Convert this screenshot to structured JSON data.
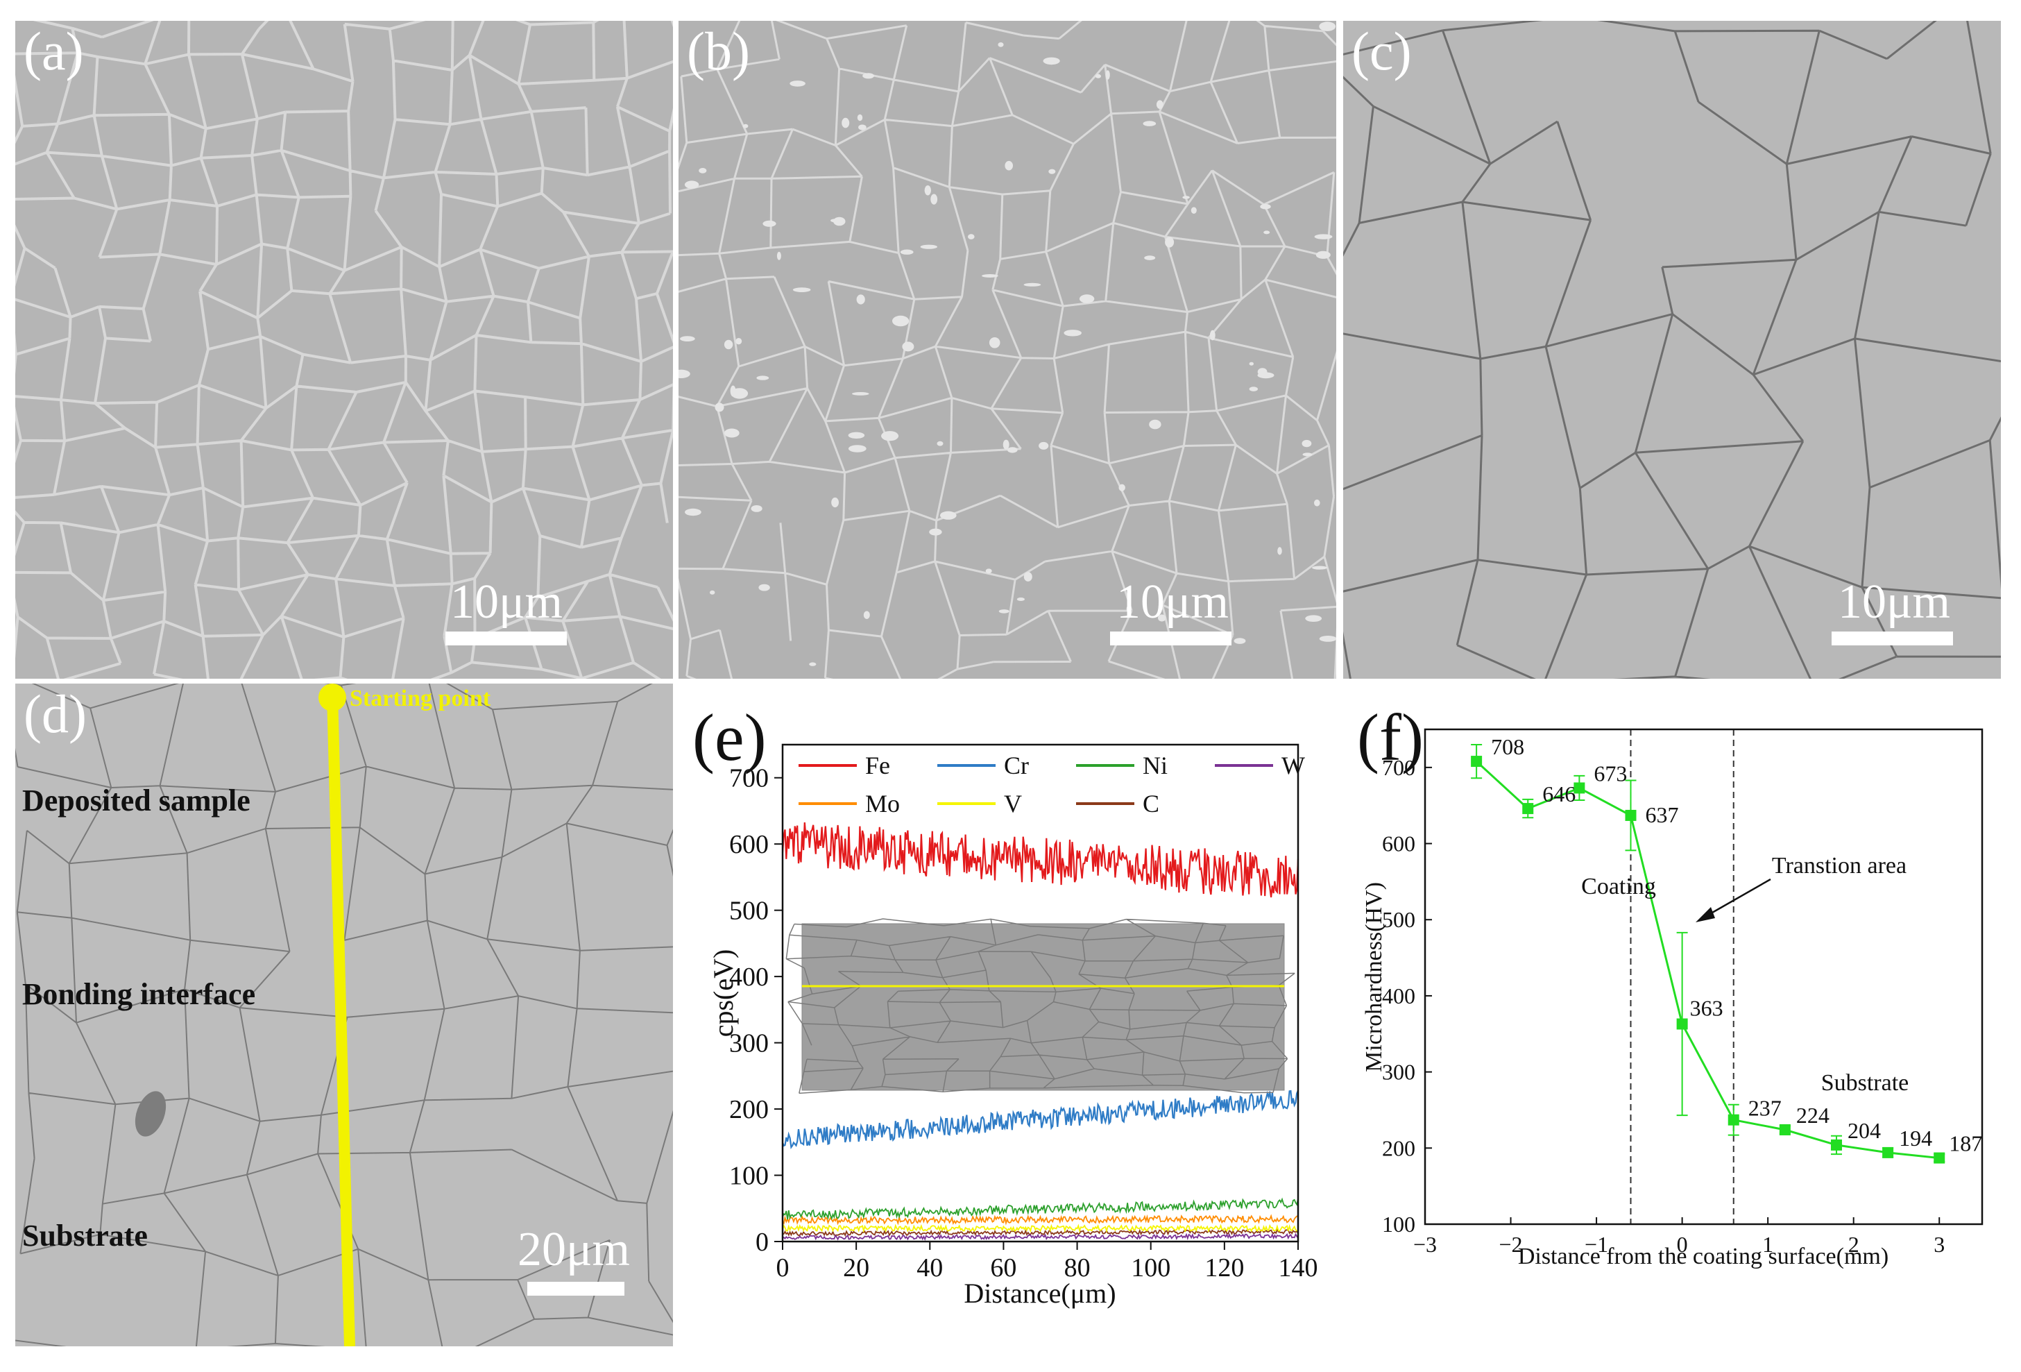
{
  "panels": {
    "a": {
      "label": "(a)",
      "scale": "10μm"
    },
    "b": {
      "label": "(b)",
      "scale": "10μm"
    },
    "c": {
      "label": "(c)",
      "scale": "10μm"
    },
    "d": {
      "label": "(d)",
      "scale": "20μm",
      "start_label": "Starting point",
      "regions": [
        "Deposited sample",
        "Bonding interface",
        "Substrate"
      ]
    },
    "e": {
      "label": "(e)"
    },
    "f": {
      "label": "(f)"
    }
  },
  "colors": {
    "sem_bg": "#b4b4b4",
    "yellow": "#f2f200",
    "Fe": "#e31a1c",
    "Cr": "#2f7cc6",
    "Ni": "#2ca02c",
    "W": "#7b3294",
    "Mo": "#ff8c00",
    "V": "#f5f500",
    "C": "#8b3a1a",
    "hardness": "#22dd22"
  },
  "chart_data": [
    {
      "type": "line",
      "panel": "e",
      "xlabel": "Distance(μm)",
      "ylabel": "cps(eV)",
      "xlim": [
        0,
        140
      ],
      "ylim": [
        0,
        750
      ],
      "xticks": [
        0,
        20,
        40,
        60,
        80,
        100,
        120,
        140
      ],
      "yticks": [
        0,
        100,
        200,
        300,
        400,
        500,
        600,
        700
      ],
      "legend": "top",
      "series": [
        {
          "name": "Fe",
          "start": 600,
          "end": 550,
          "noise": 35
        },
        {
          "name": "Cr",
          "start": 155,
          "end": 215,
          "noise": 15
        },
        {
          "name": "Ni",
          "start": 40,
          "end": 58,
          "noise": 7
        },
        {
          "name": "W",
          "start": 6,
          "end": 8,
          "noise": 3
        },
        {
          "name": "Mo",
          "start": 32,
          "end": 34,
          "noise": 5
        },
        {
          "name": "V",
          "start": 20,
          "end": 20,
          "noise": 4
        },
        {
          "name": "C",
          "start": 12,
          "end": 15,
          "noise": 3
        }
      ]
    },
    {
      "type": "line",
      "panel": "f",
      "xlabel": "Distance from the coating surface(mm)",
      "ylabel": "Microhardness(HV)",
      "xlim": [
        -3,
        3.5
      ],
      "ylim": [
        100,
        750
      ],
      "xticks": [
        -3,
        -2,
        -1,
        0,
        1,
        2,
        3
      ],
      "yticks": [
        100,
        200,
        300,
        400,
        500,
        600,
        700
      ],
      "x": [
        -2.4,
        -1.8,
        -1.2,
        -0.6,
        0,
        0.6,
        1.2,
        1.8,
        2.4,
        3.0
      ],
      "y": [
        708,
        646,
        673,
        637,
        363,
        237,
        224,
        204,
        194,
        187
      ],
      "err": [
        22,
        12,
        16,
        46,
        120,
        20,
        5,
        12,
        6,
        5
      ],
      "point_labels": [
        "708",
        "646",
        "673",
        "637",
        "363",
        "237",
        "224",
        "204",
        "194",
        "187"
      ],
      "vlines": [
        -0.6,
        0.6
      ],
      "annotations": {
        "coating": "Coating",
        "substrate": "Substrate",
        "transition": "Transtion area"
      }
    }
  ]
}
